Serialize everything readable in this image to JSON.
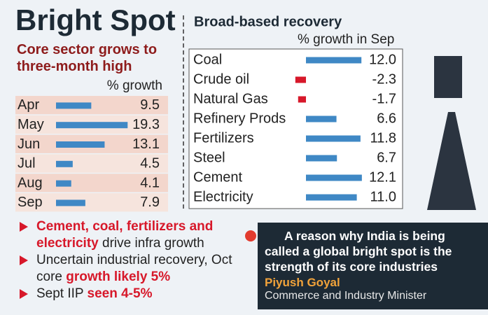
{
  "title": "Bright Spot",
  "chart_data": [
    {
      "type": "bar",
      "orientation": "horizontal",
      "title": "Core sector grows to three-month high",
      "subtitle": "% growth",
      "categories": [
        "Apr",
        "May",
        "Jun",
        "Jul",
        "Aug",
        "Sep"
      ],
      "values": [
        9.5,
        19.3,
        13.1,
        4.5,
        4.1,
        7.9
      ],
      "color": "#3f88c5"
    },
    {
      "type": "bar",
      "orientation": "horizontal",
      "title": "Broad-based recovery",
      "subtitle": "% growth in Sep",
      "categories": [
        "Coal",
        "Crude oil",
        "Natural Gas",
        "Refinery Prods",
        "Fertilizers",
        "Steel",
        "Cement",
        "Electricity"
      ],
      "values": [
        12.0,
        -2.3,
        -1.7,
        6.6,
        11.8,
        6.7,
        12.1,
        11.0
      ],
      "value_labels": [
        "12.0",
        "-2.3",
        "-1.7",
        "6.6",
        "11.8",
        "6.7",
        "12.1",
        "11.0"
      ],
      "color": "#3f88c5",
      "negative_color": "#d7182a"
    }
  ],
  "bullets": [
    [
      {
        "text": "Cement, coal, fertilizers and electricity",
        "highlight": true
      },
      {
        "text": " drive infra growth",
        "highlight": false
      }
    ],
    [
      {
        "text": "Uncertain industrial recovery, Oct core ",
        "highlight": false
      },
      {
        "text": "growth likely 5%",
        "highlight": true
      }
    ],
    [
      {
        "text": "Sept IIP ",
        "highlight": false
      },
      {
        "text": "seen 4-5%",
        "highlight": true
      }
    ]
  ],
  "quote": {
    "text": "A reason why India is being called a global bright spot is the strength of its core industries",
    "name": "Piyush Goyal",
    "role": "Commerce and Industry Minister"
  }
}
